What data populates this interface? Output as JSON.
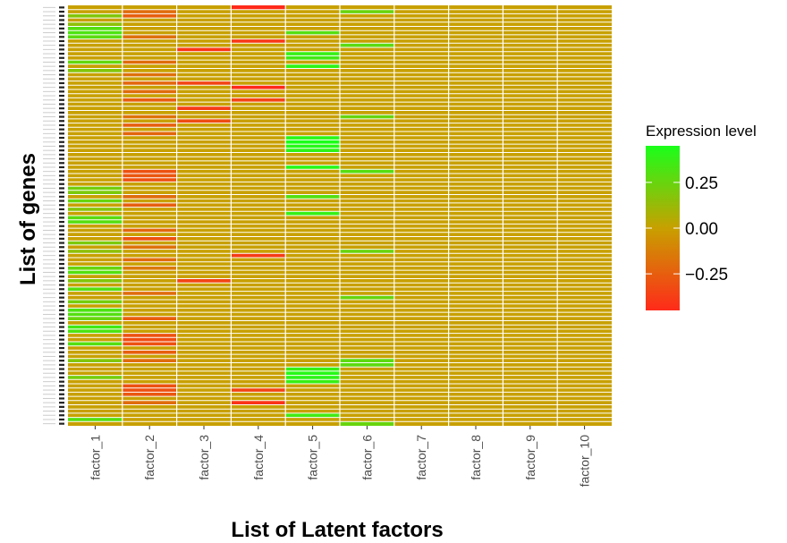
{
  "chart_data": {
    "type": "heatmap",
    "title": "",
    "xlabel": "List of Latent factors",
    "ylabel": "List of genes",
    "categories": [
      "factor_1",
      "factor_2",
      "factor_3",
      "factor_4",
      "factor_5",
      "factor_6",
      "factor_7",
      "factor_8",
      "factor_9",
      "factor_10"
    ],
    "n_genes": 100,
    "base_value": 0.0,
    "value_range": [
      -0.45,
      0.45
    ],
    "legend": {
      "title": "Expression level",
      "ticks": [
        0.25,
        0.0,
        -0.25
      ],
      "tick_labels": [
        "0.25",
        "0.00",
        "−0.25"
      ],
      "placement": "right"
    },
    "colors": {
      "low": "#ff2a1a",
      "mid": "#c8a000",
      "high": "#1aff1a",
      "grid": "#ffffff"
    },
    "cells": {
      "factor_1": [
        [
          2,
          0.18
        ],
        [
          4,
          0.15
        ],
        [
          5,
          0.3
        ],
        [
          6,
          0.32
        ],
        [
          7,
          0.28
        ],
        [
          13,
          0.26
        ],
        [
          15,
          0.18
        ],
        [
          43,
          0.22
        ],
        [
          44,
          0.2
        ],
        [
          46,
          0.25
        ],
        [
          48,
          0.18
        ],
        [
          50,
          0.28
        ],
        [
          51,
          0.3
        ],
        [
          56,
          0.2
        ],
        [
          58,
          0.15
        ],
        [
          62,
          0.25
        ],
        [
          63,
          0.3
        ],
        [
          65,
          0.18
        ],
        [
          67,
          0.3
        ],
        [
          70,
          0.22
        ],
        [
          72,
          0.32
        ],
        [
          73,
          0.3
        ],
        [
          74,
          0.25
        ],
        [
          76,
          0.35
        ],
        [
          77,
          0.32
        ],
        [
          80,
          0.3
        ],
        [
          84,
          0.18
        ],
        [
          88,
          0.22
        ],
        [
          98,
          0.3
        ]
      ],
      "factor_2": [
        [
          1,
          -0.2
        ],
        [
          2,
          -0.25
        ],
        [
          7,
          -0.18
        ],
        [
          13,
          -0.2
        ],
        [
          16,
          -0.18
        ],
        [
          18,
          -0.22
        ],
        [
          20,
          -0.2
        ],
        [
          22,
          -0.25
        ],
        [
          26,
          -0.18
        ],
        [
          28,
          -0.25
        ],
        [
          30,
          -0.22
        ],
        [
          39,
          -0.3
        ],
        [
          40,
          -0.28
        ],
        [
          41,
          -0.3
        ],
        [
          45,
          -0.2
        ],
        [
          47,
          -0.25
        ],
        [
          53,
          -0.22
        ],
        [
          55,
          -0.3
        ],
        [
          57,
          -0.18
        ],
        [
          60,
          -0.2
        ],
        [
          62,
          -0.15
        ],
        [
          68,
          -0.2
        ],
        [
          74,
          -0.25
        ],
        [
          78,
          -0.3
        ],
        [
          79,
          -0.32
        ],
        [
          80,
          -0.3
        ],
        [
          82,
          -0.25
        ],
        [
          84,
          -0.2
        ],
        [
          90,
          -0.3
        ],
        [
          91,
          -0.3
        ],
        [
          92,
          -0.28
        ],
        [
          94,
          -0.2
        ]
      ],
      "factor_3": [
        [
          10,
          -0.4
        ],
        [
          18,
          -0.35
        ],
        [
          24,
          -0.38
        ],
        [
          27,
          -0.32
        ],
        [
          65,
          -0.35
        ]
      ],
      "factor_4": [
        [
          0,
          -0.45
        ],
        [
          8,
          -0.4
        ],
        [
          19,
          -0.45
        ],
        [
          22,
          -0.35
        ],
        [
          59,
          -0.38
        ],
        [
          91,
          -0.35
        ],
        [
          94,
          -0.42
        ]
      ],
      "factor_5": [
        [
          6,
          0.3
        ],
        [
          11,
          0.38
        ],
        [
          12,
          0.35
        ],
        [
          14,
          0.4
        ],
        [
          31,
          0.42
        ],
        [
          32,
          0.45
        ],
        [
          33,
          0.42
        ],
        [
          34,
          0.4
        ],
        [
          38,
          0.42
        ],
        [
          45,
          0.3
        ],
        [
          49,
          0.38
        ],
        [
          86,
          0.38
        ],
        [
          87,
          0.42
        ],
        [
          88,
          0.4
        ],
        [
          89,
          0.38
        ],
        [
          97,
          0.35
        ]
      ],
      "factor_6": [
        [
          1,
          0.25
        ],
        [
          9,
          0.28
        ],
        [
          26,
          0.25
        ],
        [
          39,
          0.3
        ],
        [
          58,
          0.25
        ],
        [
          69,
          0.25
        ],
        [
          84,
          0.28
        ],
        [
          85,
          0.28
        ],
        [
          99,
          0.25
        ]
      ],
      "factor_7": [],
      "factor_8": [],
      "factor_9": [],
      "factor_10": []
    }
  }
}
